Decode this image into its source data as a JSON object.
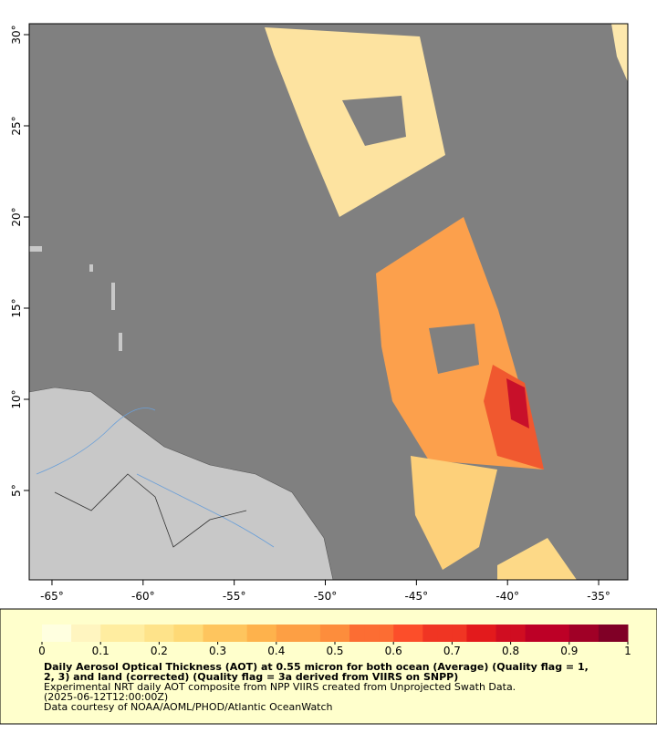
{
  "map": {
    "xlim": [
      -66.25,
      -33.4
    ],
    "ylim": [
      0.1,
      30.6
    ],
    "xticks": [
      {
        "value": -65,
        "label": "-65°"
      },
      {
        "value": -60,
        "label": "-60°"
      },
      {
        "value": -55,
        "label": "-55°"
      },
      {
        "value": -50,
        "label": "-50°"
      },
      {
        "value": -45,
        "label": "-45°"
      },
      {
        "value": -40,
        "label": "-40°"
      },
      {
        "value": -35,
        "label": "-35°"
      }
    ],
    "yticks": [
      {
        "value": 5,
        "label": "5°"
      },
      {
        "value": 10,
        "label": "10°"
      },
      {
        "value": 15,
        "label": "15°"
      },
      {
        "value": 20,
        "label": "20°"
      },
      {
        "value": 25,
        "label": "25°"
      },
      {
        "value": 30,
        "label": "30°"
      }
    ]
  },
  "colorbar": {
    "lim": [
      0,
      1
    ],
    "ticks": [
      0,
      0.1,
      0.2,
      0.3,
      0.4,
      0.5,
      0.6,
      0.7,
      0.8,
      0.9,
      1
    ]
  },
  "caption": {
    "title_lines": [
      "Daily Aerosol Optical Thickness (AOT) at 0.55 micron for both ocean (Average) (Quality flag = 1,",
      "2, 3) and land (corrected) (Quality flag = 3a derived from VIIRS on SNPP)"
    ],
    "lines": [
      "Experimental NRT daily AOT composite from NPP VIIRS created from Unprojected Swath Data.",
      "(2025-06-12T12:00:00Z)",
      "Data courtesy of NOAA/AOML/PHOD/Atlantic OceanWatch"
    ]
  }
}
